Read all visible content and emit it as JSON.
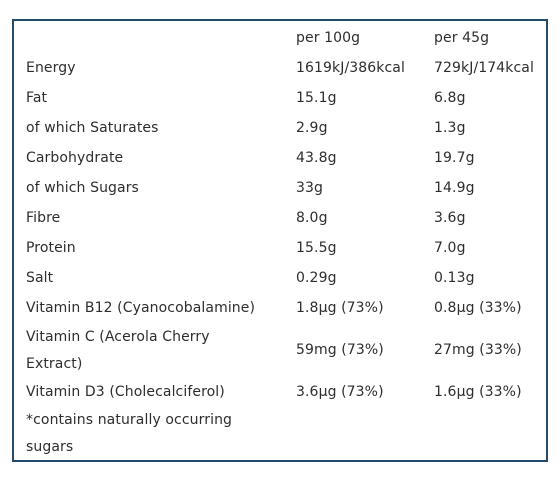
{
  "nutrition": {
    "header": {
      "col_per100": "per 100g",
      "col_per45": "per 45g"
    },
    "rows": [
      {
        "name": "Energy",
        "per100": "1619kJ/386kcal",
        "per45": "729kJ/174kcal"
      },
      {
        "name": "Fat",
        "per100": "15.1g",
        "per45": "6.8g"
      },
      {
        "name": "of which Saturates",
        "per100": "2.9g",
        "per45": "1.3g"
      },
      {
        "name": "Carbohydrate",
        "per100": "43.8g",
        "per45": "19.7g"
      },
      {
        "name": "of which Sugars",
        "per100": "33g",
        "per45": "14.9g"
      },
      {
        "name": "Fibre",
        "per100": "8.0g",
        "per45": "3.6g"
      },
      {
        "name": "Protein",
        "per100": "15.5g",
        "per45": "7.0g"
      },
      {
        "name": "Salt",
        "per100": "0.29g",
        "per45": "0.13g"
      },
      {
        "name": "Vitamin B12 (Cyanocobalamine)",
        "per100": "1.8µg (73%)",
        "per45": "0.8µg (33%)"
      },
      {
        "name": "Vitamin C (Acerola Cherry Extract)",
        "per100": "59mg (73%)",
        "per45": "27mg (33%)"
      },
      {
        "name": "Vitamin D3 (Cholecalciferol)",
        "per100": "3.6µg (73%)",
        "per45": "1.6µg (33%)"
      }
    ],
    "footnote": "*contains naturally occurring sugars"
  }
}
